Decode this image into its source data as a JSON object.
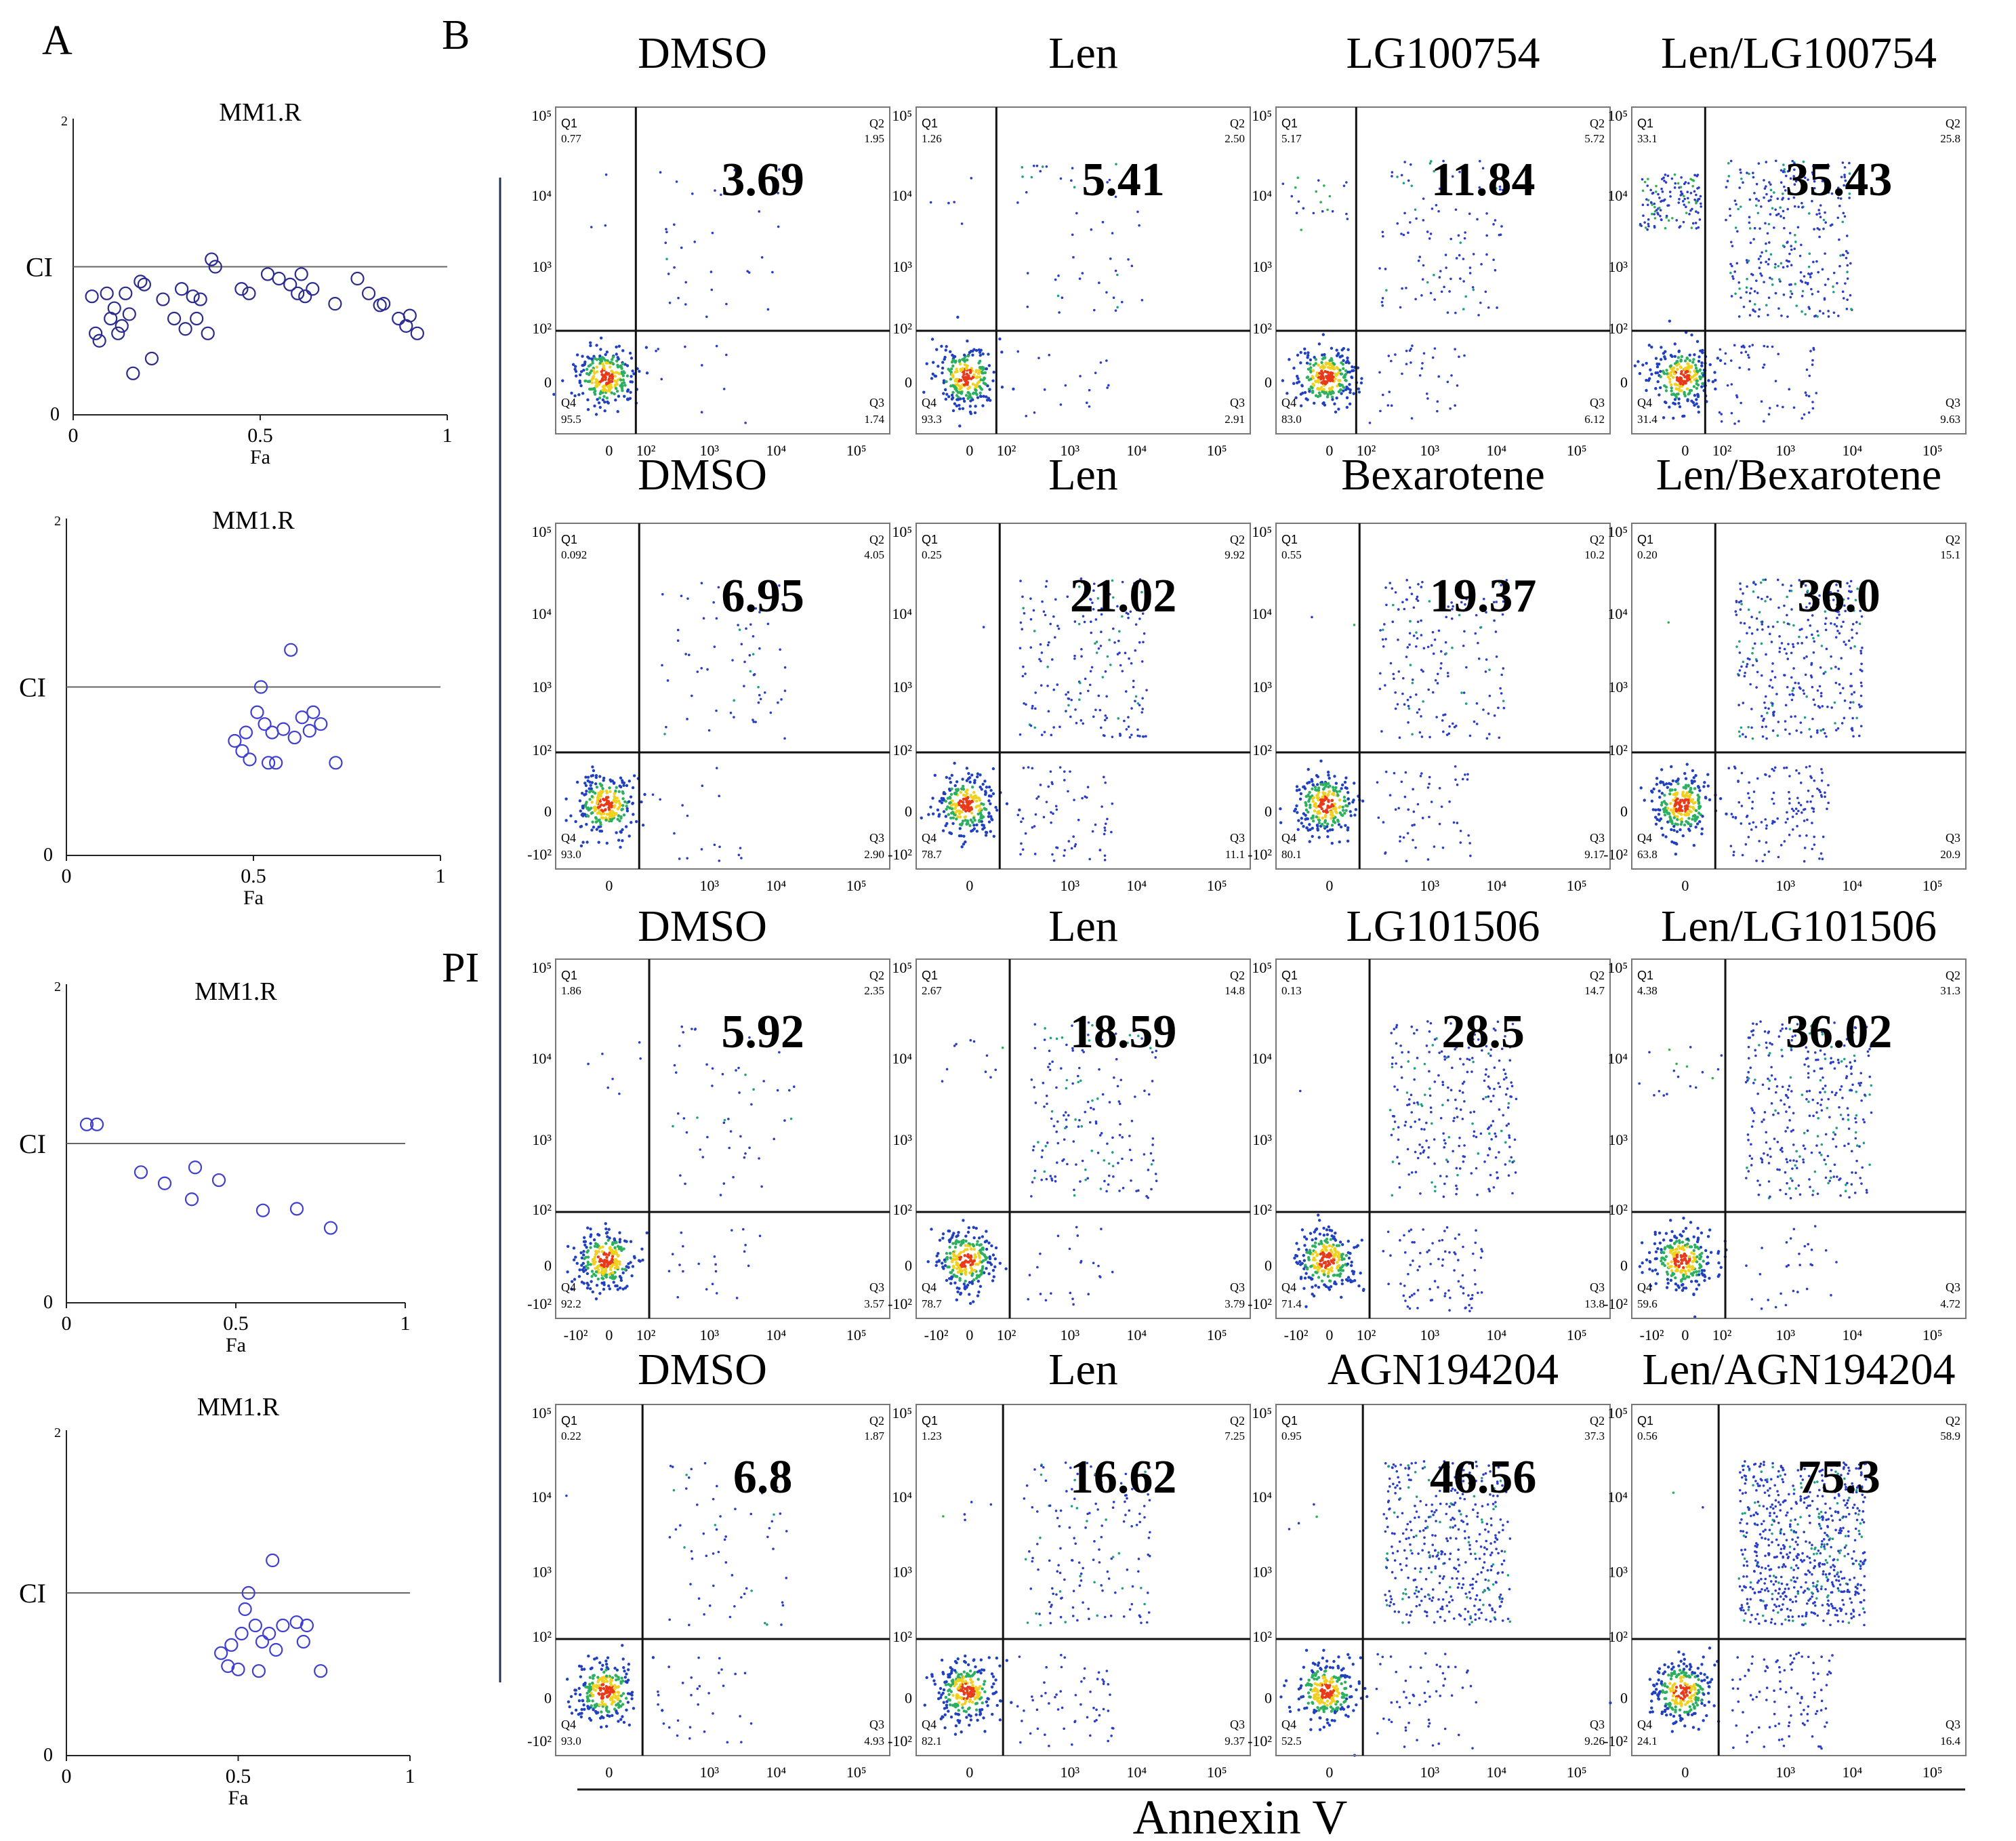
{
  "panel_labels": {
    "a": "A",
    "b": "B"
  },
  "axis_labels": {
    "y": "PI",
    "x": "Annexin V"
  },
  "chart_data": [
    {
      "type": "scatter",
      "panel": "A",
      "title": "MM1.R",
      "xlabel": "Fa",
      "ylabel": "CI",
      "xlim": [
        0,
        1
      ],
      "ylim": [
        0,
        2
      ],
      "xticks": [
        "0",
        "0.5",
        "1"
      ],
      "yticks": [
        "0",
        "2"
      ],
      "reference_line": 1,
      "points": [
        [
          0.05,
          0.8
        ],
        [
          0.06,
          0.55
        ],
        [
          0.07,
          0.5
        ],
        [
          0.09,
          0.82
        ],
        [
          0.1,
          0.65
        ],
        [
          0.11,
          0.72
        ],
        [
          0.12,
          0.55
        ],
        [
          0.13,
          0.6
        ],
        [
          0.14,
          0.82
        ],
        [
          0.15,
          0.68
        ],
        [
          0.16,
          0.28
        ],
        [
          0.18,
          0.9
        ],
        [
          0.19,
          0.88
        ],
        [
          0.21,
          0.38
        ],
        [
          0.24,
          0.78
        ],
        [
          0.27,
          0.65
        ],
        [
          0.29,
          0.85
        ],
        [
          0.3,
          0.58
        ],
        [
          0.32,
          0.8
        ],
        [
          0.33,
          0.65
        ],
        [
          0.34,
          0.78
        ],
        [
          0.36,
          0.55
        ],
        [
          0.37,
          1.05
        ],
        [
          0.38,
          1.0
        ],
        [
          0.45,
          0.85
        ],
        [
          0.47,
          0.82
        ],
        [
          0.52,
          0.95
        ],
        [
          0.55,
          0.92
        ],
        [
          0.58,
          0.88
        ],
        [
          0.6,
          0.82
        ],
        [
          0.61,
          0.95
        ],
        [
          0.62,
          0.8
        ],
        [
          0.64,
          0.85
        ],
        [
          0.7,
          0.75
        ],
        [
          0.76,
          0.92
        ],
        [
          0.79,
          0.82
        ],
        [
          0.82,
          0.74
        ],
        [
          0.83,
          0.75
        ],
        [
          0.87,
          0.65
        ],
        [
          0.89,
          0.6
        ],
        [
          0.9,
          0.67
        ],
        [
          0.92,
          0.55
        ]
      ]
    },
    {
      "type": "scatter",
      "panel": "A",
      "title": "MM1.R",
      "xlabel": "Fa",
      "ylabel": "CI",
      "xlim": [
        0,
        1
      ],
      "ylim": [
        0,
        2
      ],
      "xticks": [
        "0",
        "0.5",
        "1"
      ],
      "yticks": [
        "0",
        "2"
      ],
      "reference_line": 1,
      "points": [
        [
          0.45,
          0.68
        ],
        [
          0.47,
          0.62
        ],
        [
          0.48,
          0.73
        ],
        [
          0.49,
          0.57
        ],
        [
          0.51,
          0.85
        ],
        [
          0.52,
          1.0
        ],
        [
          0.53,
          0.78
        ],
        [
          0.54,
          0.55
        ],
        [
          0.55,
          0.73
        ],
        [
          0.56,
          0.55
        ],
        [
          0.58,
          0.75
        ],
        [
          0.6,
          1.22
        ],
        [
          0.61,
          0.7
        ],
        [
          0.63,
          0.82
        ],
        [
          0.65,
          0.74
        ],
        [
          0.66,
          0.85
        ],
        [
          0.68,
          0.78
        ],
        [
          0.72,
          0.55
        ]
      ]
    },
    {
      "type": "scatter",
      "panel": "A",
      "title": "MM1.R",
      "xlabel": "Fa",
      "ylabel": "CI",
      "xlim": [
        0,
        1
      ],
      "ylim": [
        0,
        2
      ],
      "xticks": [
        "0",
        "0.5",
        "1"
      ],
      "yticks": [
        "0",
        "2"
      ],
      "reference_line": 1,
      "points": [
        [
          0.06,
          1.12
        ],
        [
          0.09,
          1.12
        ],
        [
          0.22,
          0.82
        ],
        [
          0.29,
          0.75
        ],
        [
          0.37,
          0.65
        ],
        [
          0.38,
          0.85
        ],
        [
          0.45,
          0.77
        ],
        [
          0.58,
          0.58
        ],
        [
          0.68,
          0.59
        ],
        [
          0.78,
          0.47
        ]
      ]
    },
    {
      "type": "scatter",
      "panel": "A",
      "title": "MM1.R",
      "xlabel": "Fa",
      "ylabel": "CI",
      "xlim": [
        0,
        1
      ],
      "ylim": [
        0,
        2
      ],
      "xticks": [
        "0",
        "0.5",
        "1"
      ],
      "yticks": [
        "0",
        "2"
      ],
      "reference_line": 1,
      "points": [
        [
          0.45,
          0.63
        ],
        [
          0.47,
          0.55
        ],
        [
          0.48,
          0.68
        ],
        [
          0.5,
          0.53
        ],
        [
          0.51,
          0.75
        ],
        [
          0.52,
          0.9
        ],
        [
          0.53,
          1.0
        ],
        [
          0.55,
          0.8
        ],
        [
          0.56,
          0.52
        ],
        [
          0.57,
          0.7
        ],
        [
          0.59,
          0.75
        ],
        [
          0.6,
          1.2
        ],
        [
          0.61,
          0.65
        ],
        [
          0.63,
          0.8
        ],
        [
          0.67,
          0.82
        ],
        [
          0.69,
          0.7
        ],
        [
          0.7,
          0.8
        ],
        [
          0.74,
          0.52
        ]
      ]
    },
    {
      "type": "scatter",
      "panel": "B",
      "subtype": "flow-cytometry-quadrant",
      "xlabel": "Annexin V",
      "ylabel": "PI",
      "rows": [
        {
          "plots": [
            {
              "title": "DMSO",
              "big": "3.69",
              "q1": "0.77",
              "q2": "1.95",
              "q3": "1.74",
              "q4": "95.5"
            },
            {
              "title": "Len",
              "big": "5.41",
              "q1": "1.26",
              "q2": "2.50",
              "q3": "2.91",
              "q4": "93.3"
            },
            {
              "title": "LG100754",
              "big": "11.84",
              "q1": "5.17",
              "q2": "5.72",
              "q3": "6.12",
              "q4": "83.0"
            },
            {
              "title": "Len/LG100754",
              "big": "35.43",
              "q1": "33.1",
              "q2": "25.8",
              "q3": "9.63",
              "q4": "31.4"
            }
          ]
        },
        {
          "plots": [
            {
              "title": "DMSO",
              "big": "6.95",
              "q1": "0.092",
              "q2": "4.05",
              "q3": "2.90",
              "q4": "93.0"
            },
            {
              "title": "Len",
              "big": "21.02",
              "q1": "0.25",
              "q2": "9.92",
              "q3": "11.1",
              "q4": "78.7"
            },
            {
              "title": "Bexarotene",
              "big": "19.37",
              "q1": "0.55",
              "q2": "10.2",
              "q3": "9.17",
              "q4": "80.1"
            },
            {
              "title": "Len/Bexarotene",
              "big": "36.0",
              "q1": "0.20",
              "q2": "15.1",
              "q3": "20.9",
              "q4": "63.8"
            }
          ]
        },
        {
          "plots": [
            {
              "title": "DMSO",
              "big": "5.92",
              "q1": "1.86",
              "q2": "2.35",
              "q3": "3.57",
              "q4": "92.2"
            },
            {
              "title": "Len",
              "big": "18.59",
              "q1": "2.67",
              "q2": "14.8",
              "q3": "3.79",
              "q4": "78.7"
            },
            {
              "title": "LG101506",
              "big": "28.5",
              "q1": "0.13",
              "q2": "14.7",
              "q3": "13.8",
              "q4": "71.4"
            },
            {
              "title": "Len/LG101506",
              "big": "36.02",
              "q1": "4.38",
              "q2": "31.3",
              "q3": "4.72",
              "q4": "59.6"
            }
          ]
        },
        {
          "plots": [
            {
              "title": "DMSO",
              "big": "6.8",
              "q1": "0.22",
              "q2": "1.87",
              "q3": "4.93",
              "q4": "93.0"
            },
            {
              "title": "Len",
              "big": "16.62",
              "q1": "1.23",
              "q2": "7.25",
              "q3": "9.37",
              "q4": "82.1"
            },
            {
              "title": "AGN194204",
              "big": "46.56",
              "q1": "0.95",
              "q2": "37.3",
              "q3": "9.26",
              "q4": "52.5"
            },
            {
              "title": "Len/AGN194204",
              "big": "75.3",
              "q1": "0.56",
              "q2": "58.9",
              "q3": "16.4",
              "q4": "24.1"
            }
          ]
        }
      ],
      "quadrant_names": [
        "Q1",
        "Q2",
        "Q3",
        "Q4"
      ],
      "y_ticks": [
        "10⁵",
        "10⁴",
        "10³",
        "10²",
        "0",
        "-10²"
      ],
      "x_ticks": [
        "-10²",
        "0",
        "10²",
        "10³",
        "10⁴",
        "10⁵"
      ]
    }
  ]
}
